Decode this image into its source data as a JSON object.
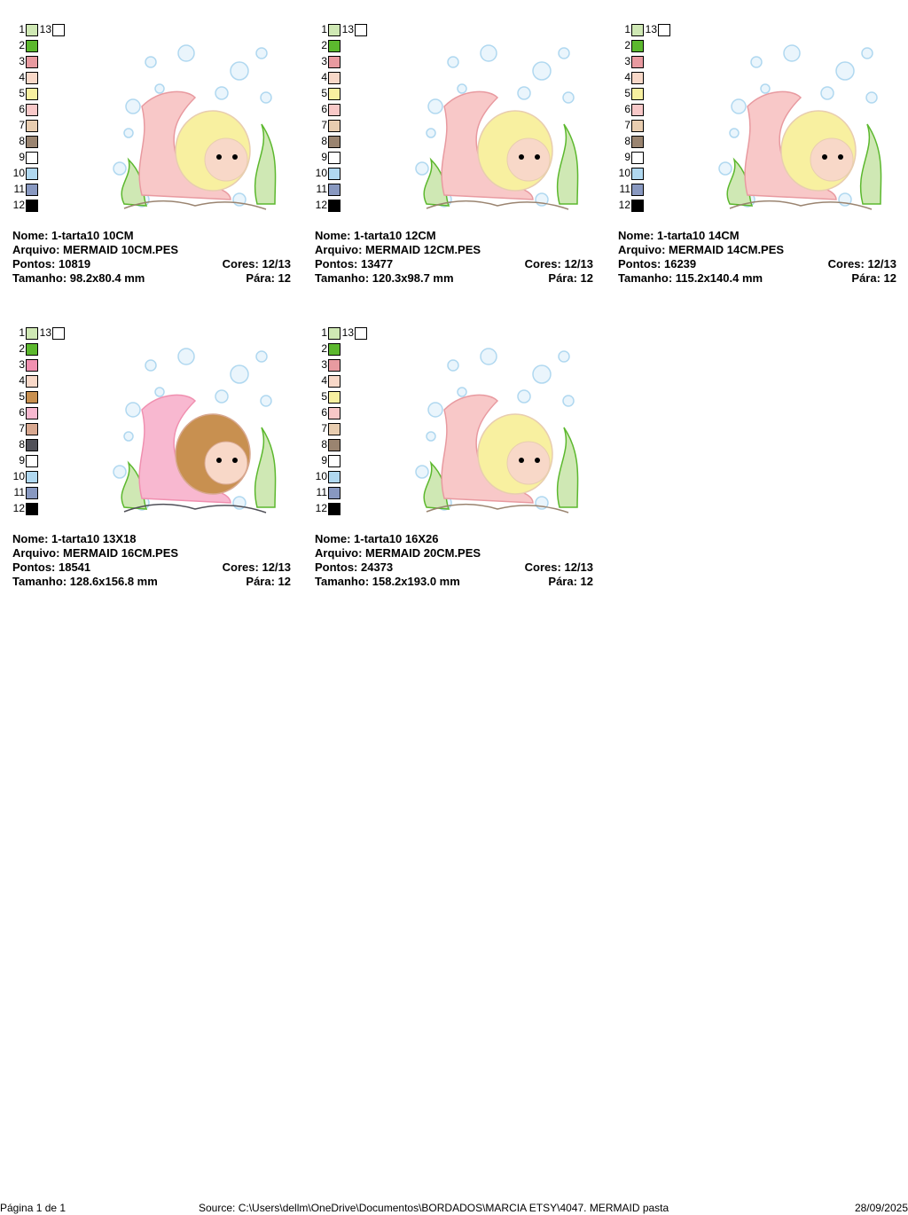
{
  "cards": [
    {
      "nome": "Nome: 1-tarta10 10CM",
      "arquivo": "Arquivo: MERMAID 10CM.PES",
      "pontos": "Pontos: 10819",
      "cores": "Cores: 12/13",
      "tamanho": "Tamanho: 98.2x80.4 mm",
      "para": "Pára: 12",
      "swatches": [
        {
          "n": 1,
          "color": "#cfe8b4"
        },
        {
          "n": 2,
          "color": "#5cb82e"
        },
        {
          "n": 3,
          "color": "#e89aa0"
        },
        {
          "n": 4,
          "color": "#f8d8c8"
        },
        {
          "n": 5,
          "color": "#f8f0a0"
        },
        {
          "n": 6,
          "color": "#f8c8c8"
        },
        {
          "n": 7,
          "color": "#e8cdb0"
        },
        {
          "n": 8,
          "color": "#9a8470"
        },
        {
          "n": 9,
          "color": "#ffffff"
        },
        {
          "n": 10,
          "color": "#b0d8f0"
        },
        {
          "n": 11,
          "color": "#8898c0"
        },
        {
          "n": 12,
          "color": "#000000"
        },
        {
          "n": 13,
          "color": "#ffffff"
        }
      ]
    },
    {
      "nome": "Nome: 1-tarta10 12CM",
      "arquivo": "Arquivo: MERMAID 12CM.PES",
      "pontos": "Pontos: 13477",
      "cores": "Cores: 12/13",
      "tamanho": "Tamanho: 120.3x98.7 mm",
      "para": "Pára: 12",
      "swatches": [
        {
          "n": 1,
          "color": "#cfe8b4"
        },
        {
          "n": 2,
          "color": "#5cb82e"
        },
        {
          "n": 3,
          "color": "#e89aa0"
        },
        {
          "n": 4,
          "color": "#f8d8c8"
        },
        {
          "n": 5,
          "color": "#f8f0a0"
        },
        {
          "n": 6,
          "color": "#f8c8c8"
        },
        {
          "n": 7,
          "color": "#e8cdb0"
        },
        {
          "n": 8,
          "color": "#9a8470"
        },
        {
          "n": 9,
          "color": "#ffffff"
        },
        {
          "n": 10,
          "color": "#b0d8f0"
        },
        {
          "n": 11,
          "color": "#8898c0"
        },
        {
          "n": 12,
          "color": "#000000"
        },
        {
          "n": 13,
          "color": "#ffffff"
        }
      ]
    },
    {
      "nome": "Nome: 1-tarta10 14CM",
      "arquivo": "Arquivo: MERMAID 14CM.PES",
      "pontos": "Pontos: 16239",
      "cores": "Cores: 12/13",
      "tamanho": "Tamanho: 115.2x140.4 mm",
      "para": "Pára: 12",
      "swatches": [
        {
          "n": 1,
          "color": "#cfe8b4"
        },
        {
          "n": 2,
          "color": "#5cb82e"
        },
        {
          "n": 3,
          "color": "#e89aa0"
        },
        {
          "n": 4,
          "color": "#f8d8c8"
        },
        {
          "n": 5,
          "color": "#f8f0a0"
        },
        {
          "n": 6,
          "color": "#f8c8c8"
        },
        {
          "n": 7,
          "color": "#e8cdb0"
        },
        {
          "n": 8,
          "color": "#9a8470"
        },
        {
          "n": 9,
          "color": "#ffffff"
        },
        {
          "n": 10,
          "color": "#b0d8f0"
        },
        {
          "n": 11,
          "color": "#8898c0"
        },
        {
          "n": 12,
          "color": "#000000"
        },
        {
          "n": 13,
          "color": "#ffffff"
        }
      ]
    },
    {
      "nome": "Nome: 1-tarta10 13X18",
      "arquivo": "Arquivo: MERMAID 16CM.PES",
      "pontos": "Pontos: 18541",
      "cores": "Cores: 12/13",
      "tamanho": "Tamanho: 128.6x156.8 mm",
      "para": "Pára: 12",
      "swatches": [
        {
          "n": 1,
          "color": "#cfe8b4"
        },
        {
          "n": 2,
          "color": "#5cb82e"
        },
        {
          "n": 3,
          "color": "#f090b0"
        },
        {
          "n": 4,
          "color": "#f8d8c8"
        },
        {
          "n": 5,
          "color": "#c89050"
        },
        {
          "n": 6,
          "color": "#f8b8d0"
        },
        {
          "n": 7,
          "color": "#d8a890"
        },
        {
          "n": 8,
          "color": "#505058"
        },
        {
          "n": 9,
          "color": "#ffffff"
        },
        {
          "n": 10,
          "color": "#b0d8f0"
        },
        {
          "n": 11,
          "color": "#8898c0"
        },
        {
          "n": 12,
          "color": "#000000"
        },
        {
          "n": 13,
          "color": "#ffffff"
        }
      ]
    },
    {
      "nome": "Nome: 1-tarta10 16X26",
      "arquivo": "Arquivo: MERMAID 20CM.PES",
      "pontos": "Pontos: 24373",
      "cores": "Cores: 12/13",
      "tamanho": "Tamanho: 158.2x193.0 mm",
      "para": "Pára: 12",
      "swatches": [
        {
          "n": 1,
          "color": "#cfe8b4"
        },
        {
          "n": 2,
          "color": "#5cb82e"
        },
        {
          "n": 3,
          "color": "#e89aa0"
        },
        {
          "n": 4,
          "color": "#f8d8c8"
        },
        {
          "n": 5,
          "color": "#f8f0a0"
        },
        {
          "n": 6,
          "color": "#f8c8c8"
        },
        {
          "n": 7,
          "color": "#e8cdb0"
        },
        {
          "n": 8,
          "color": "#9a8470"
        },
        {
          "n": 9,
          "color": "#ffffff"
        },
        {
          "n": 10,
          "color": "#b0d8f0"
        },
        {
          "n": 11,
          "color": "#8898c0"
        },
        {
          "n": 12,
          "color": "#000000"
        },
        {
          "n": 13,
          "color": "#ffffff"
        }
      ]
    }
  ],
  "footer": {
    "page": "Página 1 de 1",
    "source": "Source: C:\\Users\\dellm\\OneDrive\\Documentos\\BORDADOS\\MARCIA ETSY\\4047. MERMAID pasta",
    "date": "28/09/2025"
  }
}
